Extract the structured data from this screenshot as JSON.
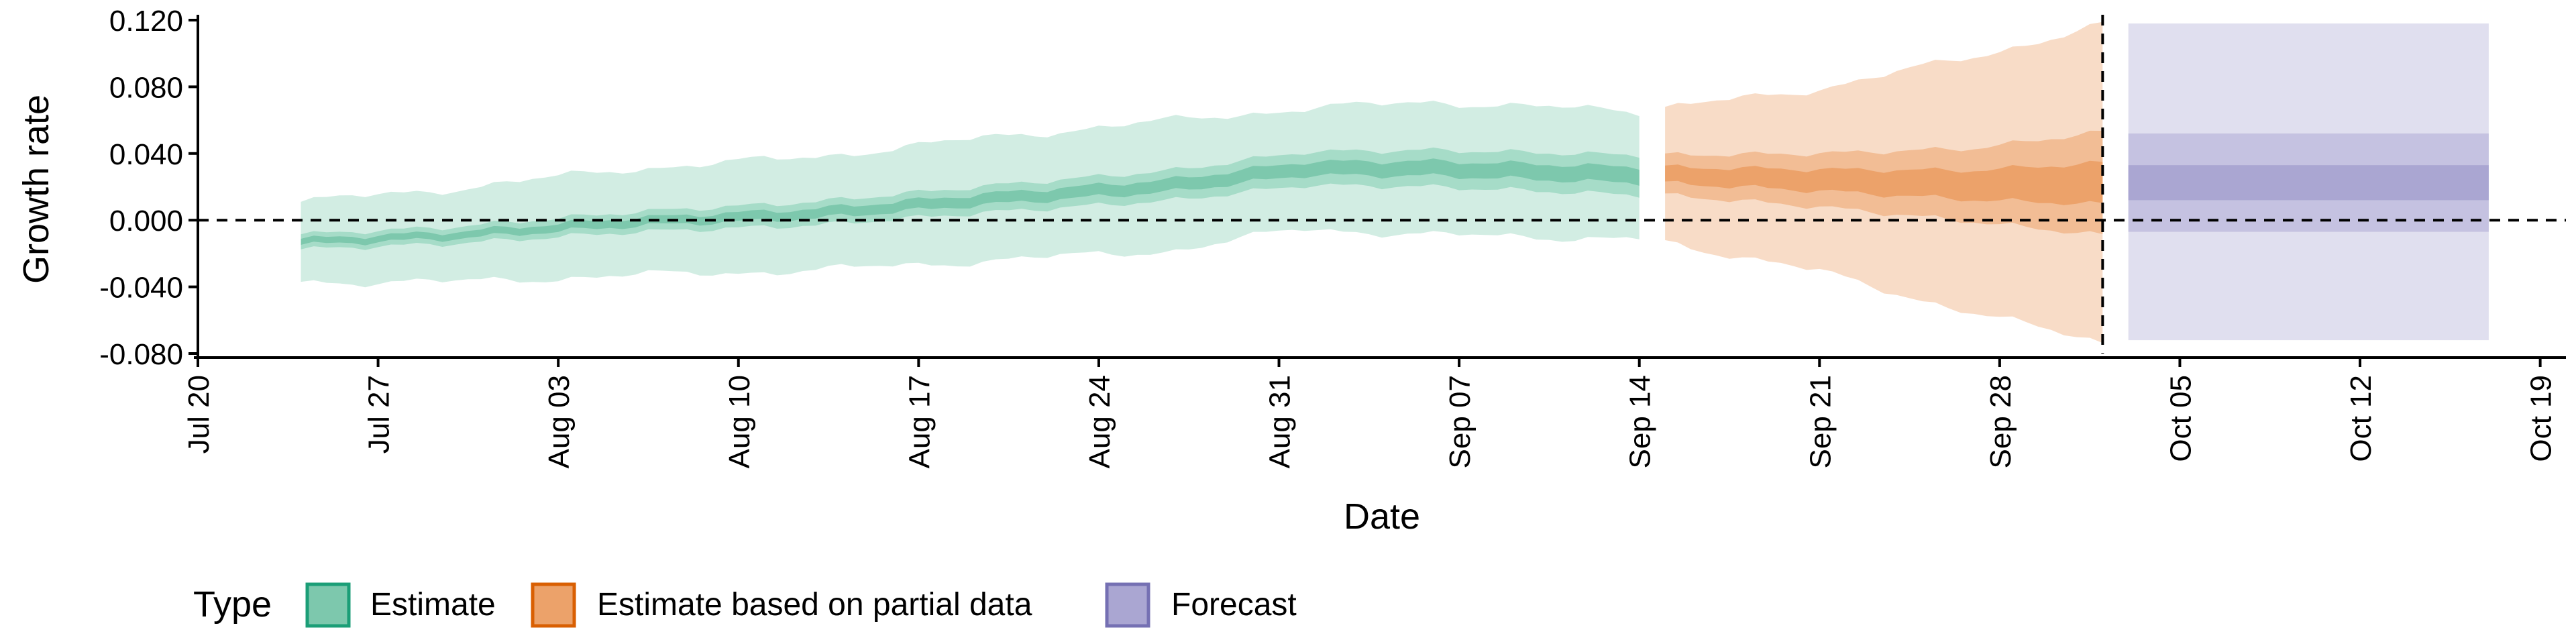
{
  "chart_data": {
    "type": "area",
    "xlabel": "Date",
    "ylabel": "Growth rate",
    "xlim": [
      "2020-07-20",
      "2020-10-20"
    ],
    "ylim": [
      -0.08,
      0.12
    ],
    "x_ticks": [
      "2020-07-20",
      "2020-07-27",
      "2020-08-03",
      "2020-08-10",
      "2020-08-17",
      "2020-08-24",
      "2020-08-31",
      "2020-09-07",
      "2020-09-14",
      "2020-09-21",
      "2020-09-28",
      "2020-10-05",
      "2020-10-12",
      "2020-10-19"
    ],
    "x_tick_labels": [
      "Jul 20",
      "Jul 27",
      "Aug 03",
      "Aug 10",
      "Aug 17",
      "Aug 24",
      "Aug 31",
      "Sep 07",
      "Sep 14",
      "Sep 21",
      "Sep 28",
      "Oct 05",
      "Oct 12",
      "Oct 19"
    ],
    "y_ticks": [
      -0.08,
      -0.04,
      0.0,
      0.04,
      0.08,
      0.12
    ],
    "y_tick_labels": [
      "-0.080",
      "-0.040",
      "0.000",
      "0.040",
      "0.080",
      "0.120"
    ],
    "hline": 0.0,
    "vline": "2020-10-02",
    "legend": {
      "title": "Type",
      "position": "bottom-left",
      "entries": [
        {
          "label": "Estimate",
          "fill": "#7dc8ad",
          "stroke": "#1b9e77"
        },
        {
          "label": "Estimate based on partial data",
          "fill": "#eca26a",
          "stroke": "#d95f02"
        },
        {
          "label": "Forecast",
          "fill": "#aaa6d2",
          "stroke": "#7570b3"
        }
      ]
    },
    "series": [
      {
        "name": "Estimate",
        "color": "#1b9e77",
        "x_start": "2020-07-24",
        "x_end": "2020-09-14",
        "knots": [
          {
            "d": 0,
            "mid": -0.013,
            "i50": 0.0045,
            "i90": 0.024
          },
          {
            "d": 6,
            "mid": -0.009,
            "i50": 0.005,
            "i90": 0.028
          },
          {
            "d": 13,
            "mid": -0.001,
            "i50": 0.006,
            "i90": 0.032
          },
          {
            "d": 20,
            "mid": 0.004,
            "i50": 0.007,
            "i90": 0.034
          },
          {
            "d": 27,
            "mid": 0.013,
            "i50": 0.008,
            "i90": 0.037
          },
          {
            "d": 34,
            "mid": 0.021,
            "i50": 0.009,
            "i90": 0.039
          },
          {
            "d": 39,
            "mid": 0.031,
            "i50": 0.01,
            "i90": 0.036
          },
          {
            "d": 44,
            "mid": 0.031,
            "i50": 0.011,
            "i90": 0.04
          },
          {
            "d": 52,
            "mid": 0.027,
            "i50": 0.012,
            "i90": 0.038
          }
        ]
      },
      {
        "name": "Estimate based on partial data",
        "color": "#d95f02",
        "x_start": "2020-09-15",
        "x_end": "2020-10-02",
        "knots": [
          {
            "d": 0,
            "mid": 0.027,
            "i50": 0.012,
            "i90": 0.04
          },
          {
            "d": 6,
            "mid": 0.024,
            "i50": 0.016,
            "i90": 0.055
          },
          {
            "d": 12,
            "mid": 0.021,
            "i50": 0.022,
            "i90": 0.077
          },
          {
            "d": 17,
            "mid": 0.022,
            "i50": 0.031,
            "i90": 0.095
          }
        ]
      },
      {
        "name": "Forecast",
        "color": "#7570b3",
        "x_start": "2020-10-03",
        "x_end": "2020-10-17",
        "mid": 0.022,
        "i20": [
          0.012,
          0.033
        ],
        "i50": [
          -0.007,
          0.052
        ],
        "i90": [
          -0.072,
          0.118
        ]
      }
    ]
  }
}
